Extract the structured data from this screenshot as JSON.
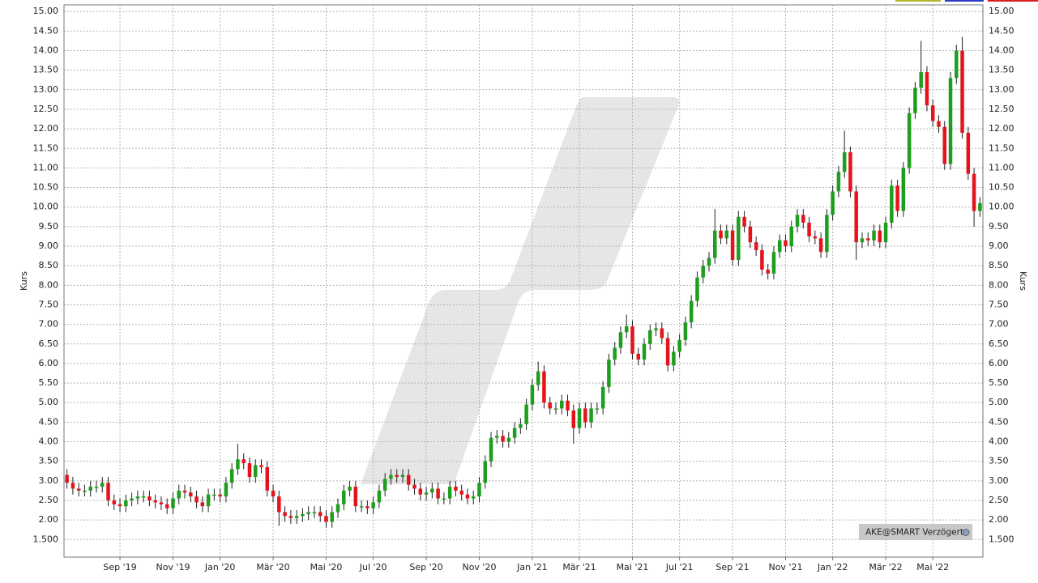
{
  "chart_data": {
    "type": "candlestick",
    "y_label": "Kurs",
    "badge": "AKE@SMART Verzögert",
    "up_color": "#1e9e1e",
    "down_color": "#e5141c",
    "grid": true,
    "ylim": [
      1.05,
      15.17
    ],
    "yticks": [
      {
        "value": 15,
        "label": "15.00"
      },
      {
        "value": 14.5,
        "label": "14.50"
      },
      {
        "value": 14,
        "label": "14.00"
      },
      {
        "value": 13.5,
        "label": "13.50"
      },
      {
        "value": 13,
        "label": "13.00"
      },
      {
        "value": 12.5,
        "label": "12.50"
      },
      {
        "value": 12,
        "label": "12.00"
      },
      {
        "value": 11.5,
        "label": "11.50"
      },
      {
        "value": 11,
        "label": "11.00"
      },
      {
        "value": 10.5,
        "label": "10.50"
      },
      {
        "value": 10,
        "label": "10.00"
      },
      {
        "value": 9.5,
        "label": "9.50"
      },
      {
        "value": 9,
        "label": "9.00"
      },
      {
        "value": 8.5,
        "label": "8.50"
      },
      {
        "value": 8,
        "label": "8.00"
      },
      {
        "value": 7.5,
        "label": "7.50"
      },
      {
        "value": 7,
        "label": "7.00"
      },
      {
        "value": 6.5,
        "label": "6.50"
      },
      {
        "value": 6,
        "label": "6.00"
      },
      {
        "value": 5.5,
        "label": "5.50"
      },
      {
        "value": 5,
        "label": "5.00"
      },
      {
        "value": 4.5,
        "label": "4.50"
      },
      {
        "value": 4,
        "label": "4.00"
      },
      {
        "value": 3.5,
        "label": "3.50"
      },
      {
        "value": 3,
        "label": "3.00"
      },
      {
        "value": 2.5,
        "label": "2.50"
      },
      {
        "value": 2,
        "label": "2.00"
      },
      {
        "value": 1.5,
        "label": "1.500"
      }
    ],
    "categories": [
      null,
      null,
      null,
      null,
      null,
      null,
      null,
      null,
      null,
      "Sep '19",
      null,
      null,
      null,
      null,
      null,
      null,
      null,
      null,
      "Nov '19",
      null,
      null,
      null,
      null,
      null,
      null,
      null,
      "Jan '20",
      null,
      null,
      null,
      null,
      null,
      null,
      null,
      null,
      "Mär '20",
      null,
      null,
      null,
      null,
      null,
      null,
      null,
      null,
      "Mai '20",
      null,
      null,
      null,
      null,
      null,
      null,
      null,
      "Jul '20",
      null,
      null,
      null,
      null,
      null,
      null,
      null,
      null,
      "Sep '20",
      null,
      null,
      null,
      null,
      null,
      null,
      null,
      null,
      "Nov '20",
      null,
      null,
      null,
      null,
      null,
      null,
      null,
      null,
      "Jan '21",
      null,
      null,
      null,
      null,
      null,
      null,
      null,
      "Mär '21",
      null,
      null,
      null,
      null,
      null,
      null,
      null,
      null,
      "Mai '21",
      null,
      null,
      null,
      null,
      null,
      null,
      null,
      "Jul '21",
      null,
      null,
      null,
      null,
      null,
      null,
      null,
      null,
      "Sep '21",
      null,
      null,
      null,
      null,
      null,
      null,
      null,
      null,
      "Nov '21",
      null,
      null,
      null,
      null,
      null,
      null,
      null,
      "Jan '22",
      null,
      null,
      null,
      null,
      null,
      null,
      null,
      null,
      "Mär '22",
      null,
      null,
      null,
      null,
      null,
      null,
      null,
      "Mai '22",
      null,
      null,
      null,
      null,
      null,
      null,
      null,
      null
    ],
    "open": [
      3.15,
      2.95,
      2.8,
      2.75,
      2.75,
      2.85,
      2.85,
      2.95,
      2.5,
      2.4,
      2.35,
      2.5,
      2.55,
      2.6,
      2.6,
      2.5,
      2.45,
      2.4,
      2.3,
      2.55,
      2.75,
      2.7,
      2.6,
      2.45,
      2.35,
      2.65,
      2.65,
      2.6,
      2.95,
      3.3,
      3.55,
      3.45,
      3.1,
      3.4,
      3.35,
      2.75,
      2.6,
      2.2,
      2.1,
      2.05,
      2.1,
      2.15,
      2.2,
      2.2,
      2.1,
      1.95,
      2.2,
      2.4,
      2.75,
      2.85,
      2.35,
      2.35,
      2.3,
      2.45,
      2.75,
      3.05,
      3.15,
      3.1,
      3.15,
      2.9,
      2.8,
      2.65,
      2.7,
      2.8,
      2.55,
      2.55,
      2.85,
      2.75,
      2.65,
      2.55,
      2.6,
      2.95,
      3.5,
      4.1,
      4.15,
      4.0,
      4.1,
      4.35,
      4.45,
      4.95,
      5.45,
      5.8,
      5.0,
      4.85,
      4.85,
      5.05,
      4.8,
      4.35,
      4.85,
      4.5,
      4.85,
      4.85,
      5.4,
      6.1,
      6.4,
      6.8,
      6.95,
      6.25,
      6.1,
      6.5,
      6.85,
      6.9,
      6.65,
      5.95,
      6.3,
      6.6,
      7.05,
      7.6,
      8.2,
      8.5,
      8.7,
      9.4,
      9.2,
      9.4,
      8.65,
      9.75,
      9.5,
      9.1,
      8.9,
      8.4,
      8.3,
      8.85,
      9.15,
      9.0,
      9.5,
      9.8,
      9.6,
      9.25,
      9.2,
      8.85,
      9.8,
      10.4,
      10.9,
      11.4,
      10.4,
      9.1,
      9.2,
      9.15,
      9.4,
      9.1,
      9.6,
      10.55,
      9.9,
      11.0,
      12.4,
      13.05,
      13.45,
      12.6,
      12.2,
      12.05,
      11.1,
      13.3,
      14.0,
      11.9,
      10.85,
      9.9
    ],
    "high": [
      3.3,
      3.1,
      2.95,
      2.9,
      3.0,
      3.0,
      3.1,
      3.1,
      2.65,
      2.55,
      2.65,
      2.7,
      2.75,
      2.75,
      2.75,
      2.65,
      2.6,
      2.55,
      2.7,
      2.9,
      2.9,
      2.85,
      2.75,
      2.6,
      2.8,
      2.8,
      2.8,
      3.1,
      3.45,
      3.95,
      3.7,
      3.6,
      3.55,
      3.55,
      3.5,
      2.9,
      2.75,
      2.35,
      2.25,
      2.25,
      2.3,
      2.35,
      2.35,
      2.35,
      2.25,
      2.35,
      2.55,
      2.9,
      3.0,
      3.0,
      2.5,
      2.5,
      2.6,
      2.9,
      3.2,
      3.3,
      3.3,
      3.3,
      3.3,
      3.05,
      2.95,
      2.85,
      2.95,
      2.95,
      2.7,
      3.0,
      3.0,
      2.9,
      2.8,
      2.75,
      3.1,
      3.65,
      4.25,
      4.3,
      4.3,
      4.25,
      4.5,
      4.6,
      5.1,
      5.6,
      6.05,
      5.95,
      5.15,
      5.0,
      5.2,
      5.2,
      4.95,
      5.0,
      5.0,
      5.0,
      5.0,
      5.55,
      6.25,
      6.55,
      6.95,
      7.25,
      7.1,
      6.4,
      6.65,
      7.0,
      7.05,
      7.05,
      6.8,
      6.45,
      6.75,
      7.2,
      7.75,
      8.35,
      8.65,
      8.85,
      9.95,
      9.55,
      9.55,
      9.55,
      9.9,
      9.9,
      9.65,
      9.25,
      9.05,
      8.55,
      9.0,
      9.3,
      9.3,
      9.65,
      9.95,
      9.95,
      9.75,
      9.4,
      9.35,
      9.95,
      10.55,
      11.05,
      11.95,
      11.55,
      10.55,
      9.35,
      9.35,
      9.55,
      9.55,
      9.75,
      10.7,
      10.7,
      11.15,
      12.55,
      13.2,
      14.25,
      13.6,
      12.75,
      12.35,
      12.2,
      13.45,
      14.15,
      14.35,
      12.05,
      11.0,
      10.25
    ],
    "low": [
      2.8,
      2.65,
      2.6,
      2.6,
      2.6,
      2.7,
      2.7,
      2.35,
      2.25,
      2.2,
      2.2,
      2.35,
      2.4,
      2.45,
      2.35,
      2.3,
      2.25,
      2.15,
      2.15,
      2.4,
      2.55,
      2.45,
      2.3,
      2.2,
      2.2,
      2.5,
      2.45,
      2.45,
      2.8,
      3.15,
      3.3,
      2.95,
      2.95,
      3.2,
      2.6,
      2.45,
      1.85,
      1.95,
      1.9,
      1.9,
      1.95,
      2.0,
      2.05,
      1.95,
      1.8,
      1.8,
      2.05,
      2.25,
      2.6,
      2.2,
      2.2,
      2.15,
      2.15,
      2.3,
      2.6,
      2.9,
      2.95,
      2.95,
      2.75,
      2.65,
      2.5,
      2.5,
      2.55,
      2.4,
      2.4,
      2.4,
      2.6,
      2.5,
      2.4,
      2.4,
      2.45,
      2.8,
      3.35,
      3.95,
      3.85,
      3.85,
      3.95,
      4.2,
      4.3,
      4.8,
      5.3,
      4.85,
      4.7,
      4.7,
      4.7,
      4.65,
      3.95,
      4.2,
      4.35,
      4.35,
      4.7,
      4.7,
      5.25,
      5.95,
      6.25,
      6.65,
      6.1,
      5.95,
      5.95,
      6.35,
      6.7,
      6.5,
      5.8,
      5.8,
      6.15,
      6.45,
      6.9,
      7.45,
      8.05,
      8.35,
      8.55,
      9.05,
      9.05,
      8.5,
      8.5,
      9.35,
      8.95,
      8.75,
      8.25,
      8.15,
      8.15,
      8.7,
      8.85,
      8.85,
      9.35,
      9.45,
      9.1,
      9.05,
      8.7,
      8.7,
      9.65,
      10.25,
      10.75,
      10.25,
      8.65,
      8.95,
      9.0,
      9.0,
      8.95,
      8.95,
      9.45,
      9.75,
      9.75,
      10.85,
      12.25,
      12.9,
      12.45,
      12.05,
      11.9,
      10.95,
      10.95,
      13.15,
      11.75,
      10.7,
      9.5,
      9.75
    ],
    "close": [
      2.95,
      2.8,
      2.75,
      2.75,
      2.85,
      2.85,
      2.95,
      2.5,
      2.4,
      2.35,
      2.5,
      2.55,
      2.6,
      2.6,
      2.5,
      2.45,
      2.4,
      2.3,
      2.55,
      2.75,
      2.7,
      2.6,
      2.45,
      2.35,
      2.65,
      2.65,
      2.6,
      2.95,
      3.3,
      3.55,
      3.45,
      3.1,
      3.4,
      3.35,
      2.75,
      2.6,
      2.2,
      2.1,
      2.05,
      2.1,
      2.15,
      2.2,
      2.2,
      2.1,
      1.95,
      2.2,
      2.4,
      2.75,
      2.85,
      2.35,
      2.35,
      2.3,
      2.45,
      2.75,
      3.05,
      3.15,
      3.1,
      3.15,
      2.9,
      2.8,
      2.65,
      2.7,
      2.8,
      2.55,
      2.55,
      2.85,
      2.75,
      2.65,
      2.55,
      2.6,
      2.95,
      3.5,
      4.1,
      4.15,
      4.0,
      4.1,
      4.35,
      4.45,
      4.95,
      5.45,
      5.8,
      5.0,
      4.85,
      4.85,
      5.05,
      4.8,
      4.35,
      4.85,
      4.5,
      4.85,
      4.85,
      5.4,
      6.1,
      6.4,
      6.8,
      6.95,
      6.25,
      6.1,
      6.5,
      6.85,
      6.9,
      6.65,
      5.95,
      6.3,
      6.6,
      7.05,
      7.6,
      8.2,
      8.5,
      8.7,
      9.4,
      9.2,
      9.4,
      8.65,
      9.75,
      9.5,
      9.1,
      8.9,
      8.4,
      8.3,
      8.85,
      9.15,
      9.0,
      9.5,
      9.8,
      9.6,
      9.25,
      9.2,
      8.85,
      9.8,
      10.4,
      10.9,
      11.4,
      10.4,
      9.1,
      9.2,
      9.15,
      9.4,
      9.1,
      9.6,
      10.55,
      9.9,
      11.0,
      12.4,
      13.05,
      13.45,
      12.6,
      12.2,
      12.05,
      11.1,
      13.3,
      14.0,
      11.9,
      10.85,
      9.9,
      10.1
    ]
  }
}
